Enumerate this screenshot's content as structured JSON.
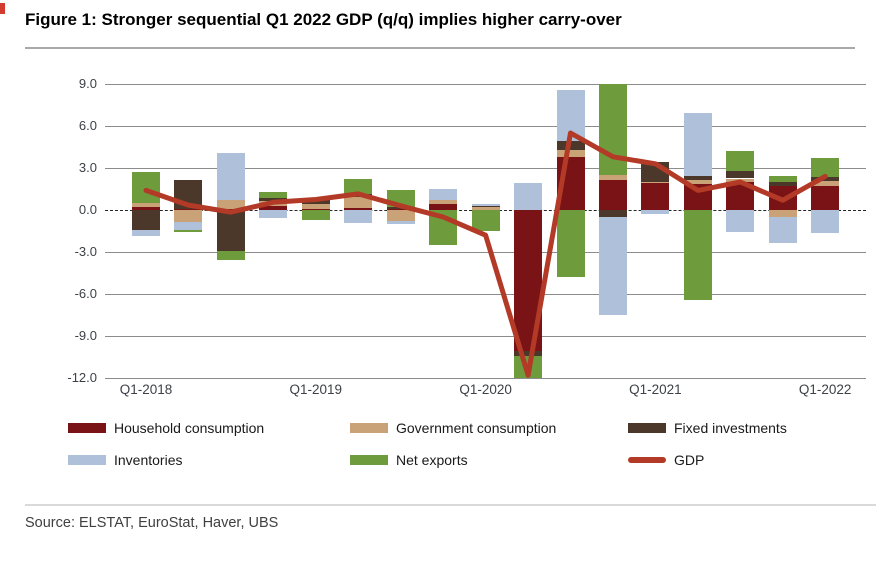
{
  "page": {
    "title": "Figure 1: Stronger sequential Q1 2022 GDP (q/q) implies higher carry-over",
    "source": "Source: ELSTAT, EuroStat, Haver, UBS"
  },
  "chart_data": {
    "type": "bar",
    "subtype": "stacked-bar-with-line",
    "title": "Figure 1: Stronger sequential Q1 2022 GDP (q/q) implies higher carry-over",
    "xlabel": "",
    "ylabel": "",
    "ylim": [
      -12.0,
      9.0
    ],
    "grid": true,
    "legend_position": "bottom",
    "y_tick_values": [
      9,
      6,
      3,
      0,
      -3,
      -6,
      -9,
      -12
    ],
    "y_tick_labels": [
      "9.0",
      "6.0",
      "3.0",
      "0.0",
      "-3.0",
      "-6.0",
      "-9.0",
      "-12.0"
    ],
    "categories": [
      "Q1-2018",
      "Q2-2018",
      "Q3-2018",
      "Q4-2018",
      "Q1-2019",
      "Q2-2019",
      "Q3-2019",
      "Q4-2019",
      "Q1-2020",
      "Q2-2020",
      "Q3-2020",
      "Q4-2020",
      "Q1-2021",
      "Q2-2021",
      "Q3-2021",
      "Q4-2021",
      "Q1-2022"
    ],
    "x_tick_indices": [
      0,
      4,
      8,
      12,
      16
    ],
    "x_tick_labels": [
      "Q1-2018",
      "Q1-2019",
      "Q1-2020",
      "Q1-2021",
      "Q1-2022"
    ],
    "series": [
      {
        "name": "Household consumption",
        "type": "bar",
        "color": "#7A1315",
        "values": [
          0.2,
          0.1,
          0.1,
          0.3,
          0.1,
          0.15,
          0.1,
          0.45,
          0.0,
          -10.1,
          3.8,
          2.15,
          1.9,
          1.85,
          2.0,
          1.7,
          1.7
        ]
      },
      {
        "name": "Government consumption",
        "type": "bar",
        "color": "#C9A377",
        "values": [
          0.3,
          -0.85,
          0.6,
          0.35,
          0.3,
          0.8,
          -0.75,
          0.3,
          0.2,
          0.0,
          0.5,
          0.35,
          0.1,
          0.3,
          0.25,
          -0.5,
          0.4
        ]
      },
      {
        "name": "Fixed investments",
        "type": "bar",
        "color": "#4C382B",
        "values": [
          -1.45,
          2.05,
          -2.95,
          0.2,
          0.3,
          0.2,
          0.1,
          0.0,
          0.1,
          -0.3,
          0.6,
          -0.5,
          1.4,
          0.25,
          0.55,
          0.3,
          0.25
        ]
      },
      {
        "name": "Inventories",
        "type": "bar",
        "color": "#AFC0DA",
        "values": [
          -0.4,
          -0.55,
          3.35,
          -0.6,
          0.15,
          -0.95,
          -0.25,
          0.75,
          0.15,
          1.9,
          3.7,
          -7.0,
          -0.3,
          4.5,
          -1.55,
          -1.85,
          -1.65
        ]
      },
      {
        "name": "Net exports",
        "type": "bar",
        "color": "#6E9C3C",
        "values": [
          2.2,
          -0.15,
          -0.6,
          0.45,
          -0.7,
          1.1,
          1.2,
          -2.5,
          -1.5,
          -1.6,
          -4.8,
          6.5,
          0.0,
          -6.4,
          1.45,
          0.4,
          1.4
        ]
      },
      {
        "name": "GDP",
        "type": "line",
        "color": "#B33A26",
        "values": [
          1.4,
          0.35,
          -0.15,
          0.55,
          0.75,
          1.15,
          0.3,
          -0.5,
          -1.8,
          -11.8,
          5.5,
          3.8,
          3.3,
          1.4,
          2.0,
          0.7,
          2.4
        ]
      }
    ]
  }
}
